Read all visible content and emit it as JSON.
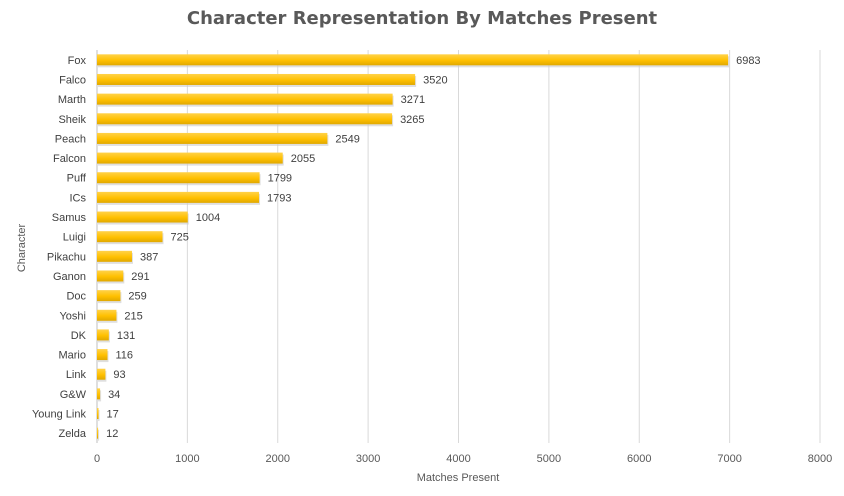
{
  "chart_data": {
    "type": "bar",
    "orientation": "horizontal",
    "title": "Character Representation By Matches Present",
    "xlabel": "Matches Present",
    "ylabel": "Character",
    "xlim": [
      0,
      8000
    ],
    "xticks": [
      0,
      1000,
      2000,
      3000,
      4000,
      5000,
      6000,
      7000,
      8000
    ],
    "grid": "vertical",
    "legend": "none",
    "data_labels": true,
    "bar_color": "#FFC000",
    "categories": [
      "Fox",
      "Falco",
      "Marth",
      "Sheik",
      "Peach",
      "Falcon",
      "Puff",
      "ICs",
      "Samus",
      "Luigi",
      "Pikachu",
      "Ganon",
      "Doc",
      "Yoshi",
      "DK",
      "Mario",
      "Link",
      "G&W",
      "Young Link",
      "Zelda"
    ],
    "values": [
      6983,
      3520,
      3271,
      3265,
      2549,
      2055,
      1799,
      1793,
      1004,
      725,
      387,
      291,
      259,
      215,
      131,
      116,
      93,
      34,
      17,
      12
    ]
  }
}
